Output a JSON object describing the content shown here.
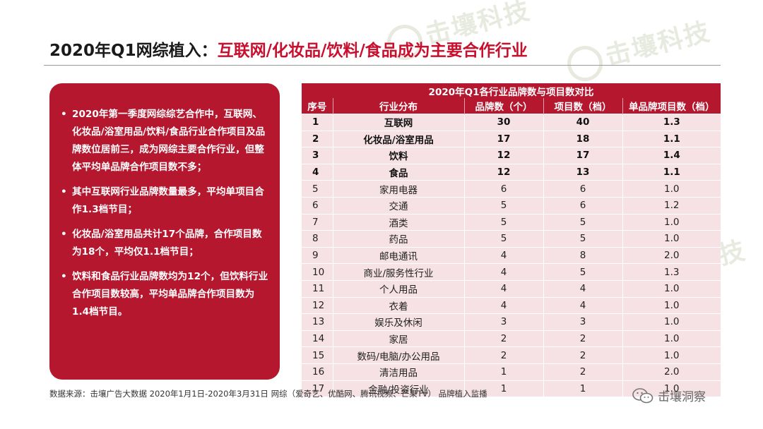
{
  "title": {
    "black": "2020年Q1网综植入：",
    "red": "互联网/化妆品/饮料/食品成为主要合作行业"
  },
  "bullets": [
    "2020年第一季度网综综艺合作中，互联网、化妆品/浴室用品/饮料/食品行业合作项目及品牌数位居前三，成为网综主要合作行业，但整体平均单品牌合作项目数不多；",
    "其中互联网行业品牌数量最多，平均单项目合作1.3档节目；",
    "化妆品/浴室用品共计17个品牌，合作项目数为18个，平均仅1.1档节目；",
    "饮料和食品行业品牌数均为12个，但饮料行业合作项目数较高，平均单品牌合作项目数为1.4档节目。"
  ],
  "table": {
    "caption": "2020年Q1各行业品牌数与项目数对比",
    "headers": [
      "序号",
      "行业分布",
      "品牌数（个）",
      "项目数（档）",
      "单品牌项目数（档）"
    ],
    "rows": [
      [
        "1",
        "互联网",
        "30",
        "40",
        "1.3"
      ],
      [
        "2",
        "化妆品/浴室用品",
        "17",
        "18",
        "1.1"
      ],
      [
        "3",
        "饮料",
        "12",
        "17",
        "1.4"
      ],
      [
        "4",
        "食品",
        "12",
        "13",
        "1.1"
      ],
      [
        "5",
        "家用电器",
        "6",
        "6",
        "1.0"
      ],
      [
        "6",
        "交通",
        "5",
        "6",
        "1.2"
      ],
      [
        "7",
        "酒类",
        "5",
        "5",
        "1.0"
      ],
      [
        "8",
        "药品",
        "5",
        "5",
        "1.0"
      ],
      [
        "9",
        "邮电通讯",
        "4",
        "8",
        "2.0"
      ],
      [
        "10",
        "商业/服务性行业",
        "4",
        "5",
        "1.3"
      ],
      [
        "11",
        "个人用品",
        "4",
        "4",
        "1.0"
      ],
      [
        "12",
        "衣着",
        "4",
        "4",
        "1.0"
      ],
      [
        "13",
        "娱乐及休闲",
        "3",
        "3",
        "1.0"
      ],
      [
        "14",
        "家居",
        "2",
        "2",
        "1.0"
      ],
      [
        "15",
        "数码/电脑/办公用品",
        "2",
        "2",
        "1.0"
      ],
      [
        "16",
        "清洁用品",
        "1",
        "2",
        "2.0"
      ],
      [
        "17",
        "金融/投资行业",
        "1",
        "1",
        "1.0"
      ]
    ],
    "bold_rows": [
      0,
      1,
      2,
      3
    ]
  },
  "source": "数据来源：击壤广告大数据 2020年1月1日-2020年3月31日  网综（爱奇艺、优酷网、腾讯视频、芒果TV） 品牌植入监播",
  "brand": {
    "name": "击壤洞察",
    "icon": "wechat-icon"
  },
  "watermark": "击壤科技",
  "colors": {
    "accent": "#b5172f",
    "row_bg": "#f6e2e5"
  }
}
